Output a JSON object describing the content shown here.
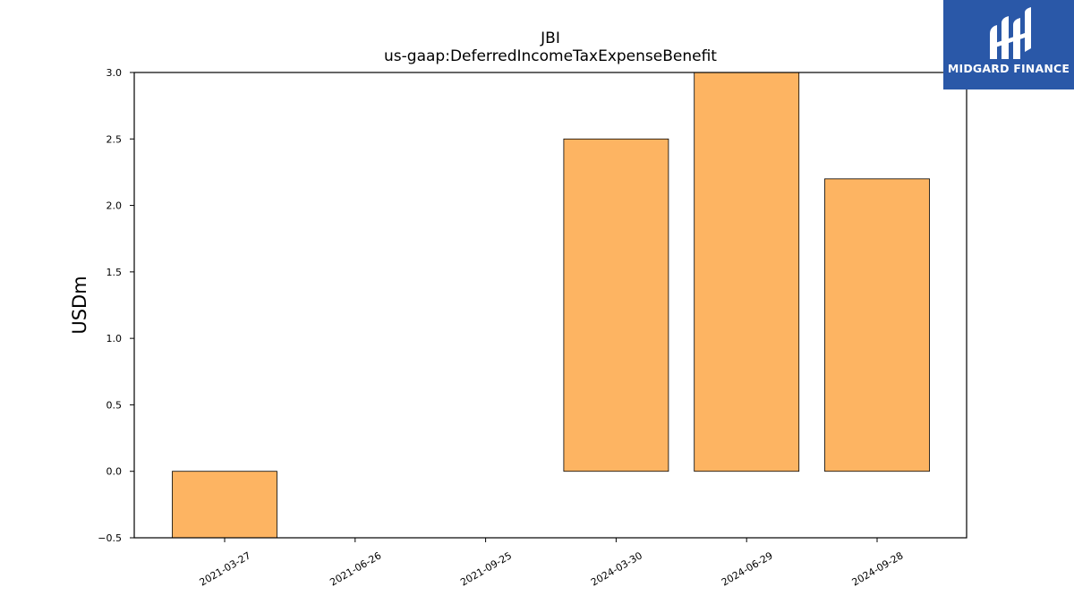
{
  "chart_data": {
    "type": "bar",
    "title": "JBI",
    "subtitle": "us-gaap:DeferredIncomeTaxExpenseBenefit",
    "xlabel": "",
    "ylabel": "USDm",
    "categories": [
      "2021-03-27",
      "2021-06-26",
      "2021-09-25",
      "2024-03-30",
      "2024-06-29",
      "2024-09-28"
    ],
    "values": [
      -0.5,
      0.0,
      0.0,
      2.5,
      3.0,
      2.2
    ],
    "ylim": [
      -0.5,
      3.0
    ],
    "yticks": [
      -0.5,
      0.0,
      0.5,
      1.0,
      1.5,
      2.0,
      2.5,
      3.0
    ],
    "ytick_labels": [
      "−0.5",
      "0.0",
      "0.5",
      "1.0",
      "1.5",
      "2.0",
      "2.5",
      "3.0"
    ],
    "bar_color": "#fdb462",
    "edge_color": "#000000",
    "grid": false,
    "legend": "none"
  },
  "logo": {
    "text": "MIDGARD FINANCE",
    "background": "#2a58a8"
  }
}
